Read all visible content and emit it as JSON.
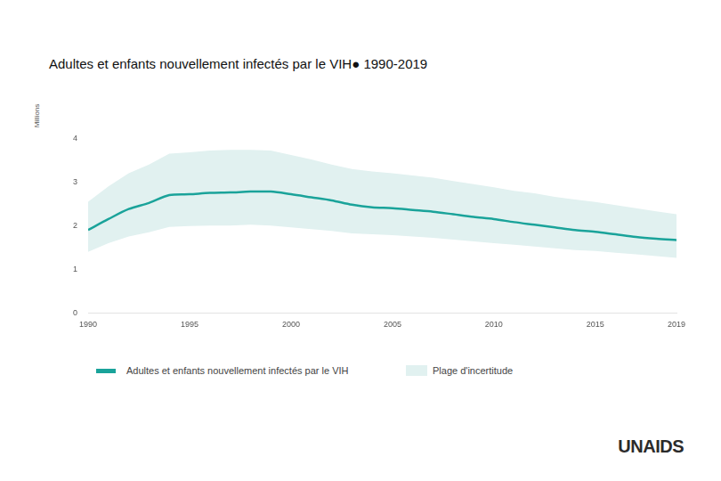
{
  "chart_data": {
    "type": "line",
    "title": "Adultes et enfants nouvellement infectés par le VIH● 1990-2019",
    "y_label": "Millions",
    "source": "UNAIDS",
    "x": [
      1990,
      1991,
      1992,
      1993,
      1994,
      1995,
      1996,
      1997,
      1998,
      1999,
      2000,
      2001,
      2002,
      2003,
      2004,
      2005,
      2006,
      2007,
      2008,
      2009,
      2010,
      2011,
      2012,
      2013,
      2014,
      2015,
      2016,
      2017,
      2018,
      2019
    ],
    "xlim": [
      1990,
      2019
    ],
    "xticks": [
      1990,
      1995,
      2000,
      2005,
      2010,
      2015,
      2019
    ],
    "ylim": [
      0,
      4
    ],
    "yticks": [
      0,
      1,
      2,
      3,
      4
    ],
    "grid": false,
    "legend": "bottom",
    "series": [
      {
        "name": "Adultes et enfants nouvellement infectés par le VIH",
        "type": "line",
        "color": "#1aa39a",
        "values": [
          1.9,
          2.15,
          2.38,
          2.52,
          2.7,
          2.72,
          2.75,
          2.76,
          2.78,
          2.78,
          2.72,
          2.65,
          2.58,
          2.48,
          2.42,
          2.4,
          2.36,
          2.32,
          2.26,
          2.2,
          2.15,
          2.08,
          2.02,
          1.96,
          1.9,
          1.86,
          1.8,
          1.74,
          1.7,
          1.67
        ]
      },
      {
        "name": "Plage d'incertitude",
        "type": "band",
        "color": "#e1f1f0",
        "lower": [
          1.4,
          1.6,
          1.75,
          1.85,
          1.97,
          1.99,
          2.0,
          2.0,
          2.02,
          2.0,
          1.96,
          1.92,
          1.88,
          1.82,
          1.8,
          1.78,
          1.75,
          1.72,
          1.68,
          1.64,
          1.6,
          1.56,
          1.52,
          1.48,
          1.44,
          1.42,
          1.38,
          1.34,
          1.3,
          1.26
        ],
        "upper": [
          2.55,
          2.9,
          3.2,
          3.4,
          3.65,
          3.68,
          3.72,
          3.74,
          3.74,
          3.72,
          3.62,
          3.52,
          3.4,
          3.3,
          3.24,
          3.2,
          3.15,
          3.1,
          3.02,
          2.95,
          2.88,
          2.8,
          2.74,
          2.66,
          2.6,
          2.54,
          2.47,
          2.4,
          2.33,
          2.26
        ]
      }
    ]
  }
}
